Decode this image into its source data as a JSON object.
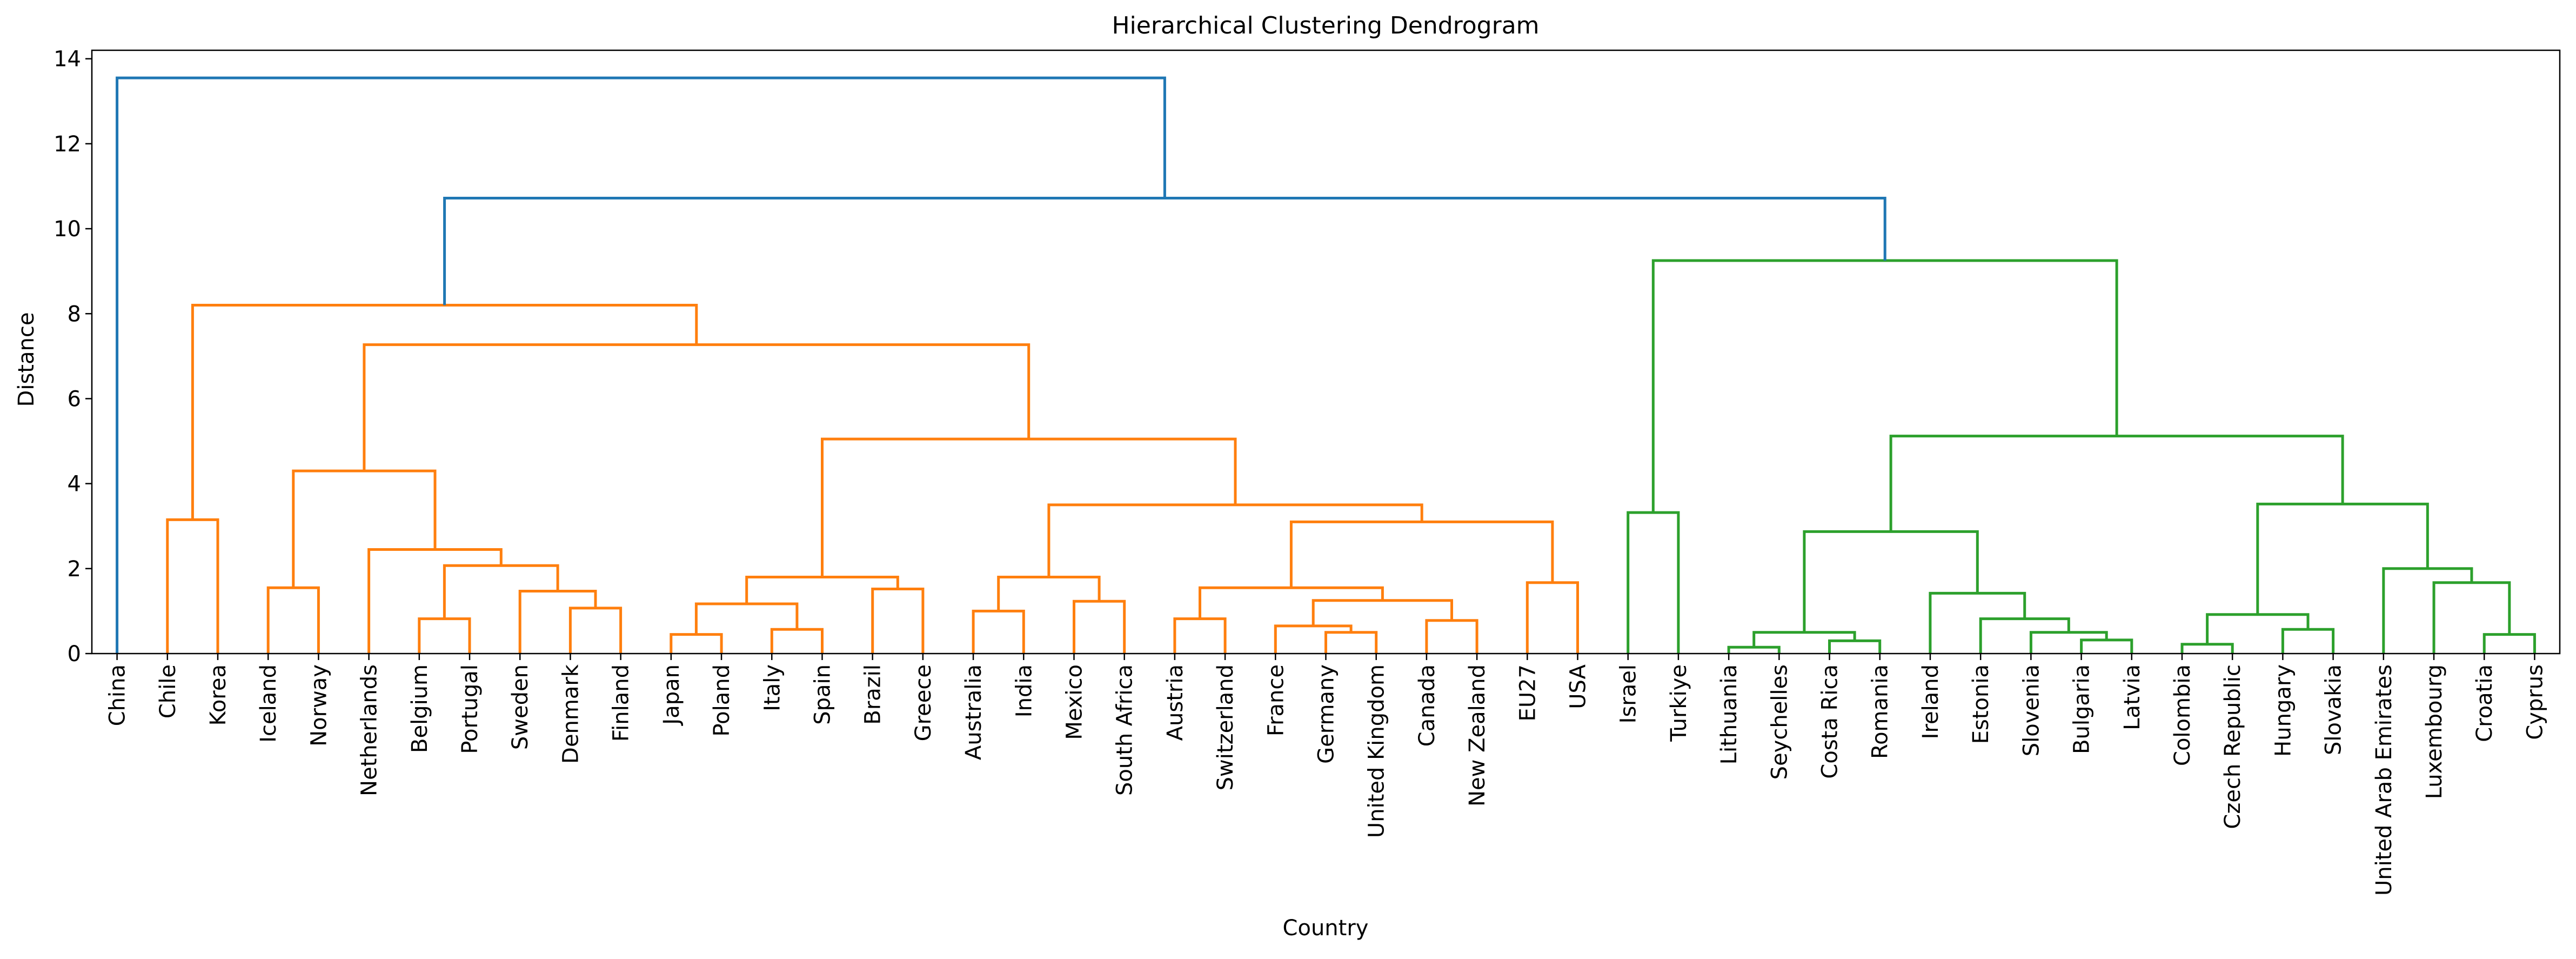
{
  "chart_data": {
    "type": "dendrogram",
    "title": "Hierarchical Clustering Dendrogram",
    "xlabel": "Country",
    "ylabel": "Distance",
    "ylim": [
      0,
      14.2
    ],
    "yticks": [
      0,
      2,
      4,
      6,
      8,
      10,
      12,
      14
    ],
    "grid": false,
    "colors": {
      "above_threshold": "#1f77b4",
      "cluster_1": "#ff7f0e",
      "cluster_2": "#2ca02c"
    },
    "leaves": [
      "China",
      "Chile",
      "Korea",
      "Iceland",
      "Norway",
      "Netherlands",
      "Belgium",
      "Portugal",
      "Sweden",
      "Denmark",
      "Finland",
      "Japan",
      "Poland",
      "Italy",
      "Spain",
      "Brazil",
      "Greece",
      "Australia",
      "India",
      "Mexico",
      "South Africa",
      "Austria",
      "Switzerland",
      "France",
      "Germany",
      "United Kingdom",
      "Canada",
      "New Zealand",
      "EU27",
      "USA",
      "Israel",
      "Turkiye",
      "Lithuania",
      "Seychelles",
      "Costa Rica",
      "Romania",
      "Ireland",
      "Estonia",
      "Slovenia",
      "Bulgaria",
      "Latvia",
      "Colombia",
      "Czech Republic",
      "Hungary",
      "Slovakia",
      "United Arab Emirates",
      "Luxembourg",
      "Croatia",
      "Cyprus"
    ],
    "merges": [
      {
        "left": "Chile",
        "right": "Korea",
        "height": 3.15,
        "color": "cluster_1"
      },
      {
        "left": "Iceland",
        "right": "Norway",
        "height": 1.55,
        "color": "cluster_1"
      },
      {
        "left": "Belgium",
        "right": "Portugal",
        "height": 0.82,
        "color": "cluster_1"
      },
      {
        "left": "Denmark",
        "right": "Finland",
        "height": 1.07,
        "color": "cluster_1"
      },
      {
        "left": "Sweden",
        "right": "Denmark+Finland",
        "height": 1.47,
        "color": "cluster_1"
      },
      {
        "left": "Belgium+Portugal",
        "right": "Sweden+Denmark+Finland",
        "height": 2.07,
        "color": "cluster_1"
      },
      {
        "left": "Netherlands",
        "right": "Belgium..Finland",
        "height": 2.45,
        "color": "cluster_1"
      },
      {
        "left": "Iceland+Norway",
        "right": "Netherlands..Finland",
        "height": 4.3,
        "color": "cluster_1"
      },
      {
        "left": "Japan",
        "right": "Poland",
        "height": 0.45,
        "color": "cluster_1"
      },
      {
        "left": "Italy",
        "right": "Spain",
        "height": 0.57,
        "color": "cluster_1"
      },
      {
        "left": "Japan+Poland",
        "right": "Italy+Spain",
        "height": 1.17,
        "color": "cluster_1"
      },
      {
        "left": "Brazil",
        "right": "Greece",
        "height": 1.52,
        "color": "cluster_1"
      },
      {
        "left": "Japan..Spain",
        "right": "Brazil+Greece",
        "height": 1.8,
        "color": "cluster_1"
      },
      {
        "left": "Australia",
        "right": "India",
        "height": 1.0,
        "color": "cluster_1"
      },
      {
        "left": "Mexico",
        "right": "South Africa",
        "height": 1.23,
        "color": "cluster_1"
      },
      {
        "left": "Australia+India",
        "right": "Mexico+South Africa",
        "height": 1.8,
        "color": "cluster_1"
      },
      {
        "left": "Austria",
        "right": "Switzerland",
        "height": 0.82,
        "color": "cluster_1"
      },
      {
        "left": "Germany",
        "right": "United Kingdom",
        "height": 0.5,
        "color": "cluster_1"
      },
      {
        "left": "France",
        "right": "Germany+United Kingdom",
        "height": 0.65,
        "color": "cluster_1"
      },
      {
        "left": "Canada",
        "right": "New Zealand",
        "height": 0.78,
        "color": "cluster_1"
      },
      {
        "left": "France+Germany+United Kingdom",
        "right": "Canada+New Zealand",
        "height": 1.25,
        "color": "cluster_1"
      },
      {
        "left": "Austria+Switzerland",
        "right": "France..New Zealand",
        "height": 1.55,
        "color": "cluster_1"
      },
      {
        "left": "EU27",
        "right": "USA",
        "height": 1.67,
        "color": "cluster_1"
      },
      {
        "left": "Austria..New Zealand",
        "right": "EU27+USA",
        "height": 3.1,
        "color": "cluster_1"
      },
      {
        "left": "Australia..South Africa",
        "right": "Austria..USA",
        "height": 3.5,
        "color": "cluster_1"
      },
      {
        "left": "Japan..Greece",
        "right": "Australia..USA",
        "height": 5.05,
        "color": "cluster_1"
      },
      {
        "left": "Iceland..Finland",
        "right": "Japan..USA",
        "height": 7.27,
        "color": "cluster_1"
      },
      {
        "left": "Chile+Korea",
        "right": "Iceland..USA",
        "height": 8.2,
        "color": "cluster_1"
      },
      {
        "left": "Lithuania",
        "right": "Seychelles",
        "height": 0.15,
        "color": "cluster_2"
      },
      {
        "left": "Costa Rica",
        "right": "Romania",
        "height": 0.3,
        "color": "cluster_2"
      },
      {
        "left": "Lithuania+Seychelles",
        "right": "Costa Rica+Romania",
        "height": 0.5,
        "color": "cluster_2"
      },
      {
        "left": "Bulgaria",
        "right": "Latvia",
        "height": 0.32,
        "color": "cluster_2"
      },
      {
        "left": "Slovenia",
        "right": "Bulgaria+Latvia",
        "height": 0.5,
        "color": "cluster_2"
      },
      {
        "left": "Estonia",
        "right": "Slovenia+Bulgaria+Latvia",
        "height": 0.82,
        "color": "cluster_2"
      },
      {
        "left": "Ireland",
        "right": "Estonia..Latvia",
        "height": 1.42,
        "color": "cluster_2"
      },
      {
        "left": "Lithuania..Romania",
        "right": "Ireland..Latvia",
        "height": 2.87,
        "color": "cluster_2"
      },
      {
        "left": "Colombia",
        "right": "Czech Republic",
        "height": 0.22,
        "color": "cluster_2"
      },
      {
        "left": "Hungary",
        "right": "Slovakia",
        "height": 0.57,
        "color": "cluster_2"
      },
      {
        "left": "Colombia+Czech Republic",
        "right": "Hungary+Slovakia",
        "height": 0.92,
        "color": "cluster_2"
      },
      {
        "left": "Croatia",
        "right": "Cyprus",
        "height": 0.45,
        "color": "cluster_2"
      },
      {
        "left": "Luxembourg",
        "right": "Croatia+Cyprus",
        "height": 1.67,
        "color": "cluster_2"
      },
      {
        "left": "United Arab Emirates",
        "right": "Luxembourg+Croatia+Cyprus",
        "height": 2.0,
        "color": "cluster_2"
      },
      {
        "left": "Colombia..Slovakia",
        "right": "United Arab Emirates..Cyprus",
        "height": 3.52,
        "color": "cluster_2"
      },
      {
        "left": "Lithuania..Latvia",
        "right": "Colombia..Cyprus",
        "height": 5.12,
        "color": "cluster_2"
      },
      {
        "left": "Israel",
        "right": "Turkiye",
        "height": 3.32,
        "color": "cluster_2"
      },
      {
        "left": "Israel+Turkiye",
        "right": "Lithuania..Cyprus",
        "height": 9.25,
        "color": "cluster_2"
      },
      {
        "left": "Chile..USA",
        "right": "Israel..Cyprus",
        "height": 10.72,
        "color": "above_threshold"
      },
      {
        "left": "China",
        "right": "Chile..Cyprus",
        "height": 13.55,
        "color": "above_threshold"
      }
    ]
  }
}
